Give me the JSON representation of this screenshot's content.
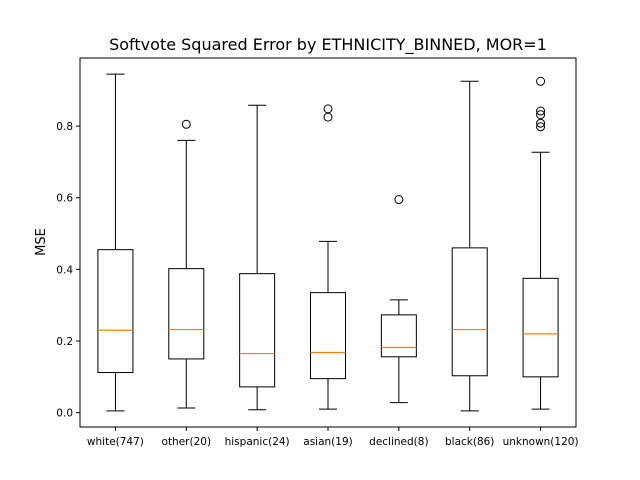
{
  "chart_data": {
    "type": "box",
    "title": "Softvote Squared Error by ETHNICITY_BINNED, MOR=1",
    "xlabel": "",
    "ylabel": "MSE",
    "ylim": [
      -0.04,
      0.99
    ],
    "yticks": [
      0.0,
      0.2,
      0.4,
      0.6,
      0.8
    ],
    "ytick_labels": [
      "0.0",
      "0.2",
      "0.4",
      "0.6",
      "0.8"
    ],
    "grid": false,
    "colors": {
      "box": "#000000",
      "median": "#ff7f0e",
      "flier": "#000000"
    },
    "categories": [
      "white(747)",
      "other(20)",
      "hispanic(24)",
      "asian(19)",
      "declined(8)",
      "black(86)",
      "unknown(120)"
    ],
    "boxes": [
      {
        "label": "white(747)",
        "whisker_low": 0.005,
        "q1": 0.112,
        "median": 0.23,
        "q3": 0.455,
        "whisker_high": 0.945,
        "fliers": []
      },
      {
        "label": "other(20)",
        "whisker_low": 0.013,
        "q1": 0.15,
        "median": 0.232,
        "q3": 0.402,
        "whisker_high": 0.76,
        "fliers": [
          0.805
        ]
      },
      {
        "label": "hispanic(24)",
        "whisker_low": 0.008,
        "q1": 0.072,
        "median": 0.165,
        "q3": 0.388,
        "whisker_high": 0.858,
        "fliers": []
      },
      {
        "label": "asian(19)",
        "whisker_low": 0.01,
        "q1": 0.095,
        "median": 0.168,
        "q3": 0.335,
        "whisker_high": 0.478,
        "fliers": [
          0.825,
          0.848
        ]
      },
      {
        "label": "declined(8)",
        "whisker_low": 0.028,
        "q1": 0.156,
        "median": 0.182,
        "q3": 0.273,
        "whisker_high": 0.315,
        "fliers": [
          0.595
        ]
      },
      {
        "label": "black(86)",
        "whisker_low": 0.005,
        "q1": 0.103,
        "median": 0.232,
        "q3": 0.46,
        "whisker_high": 0.925,
        "fliers": []
      },
      {
        "label": "unknown(120)",
        "whisker_low": 0.01,
        "q1": 0.1,
        "median": 0.22,
        "q3": 0.375,
        "whisker_high": 0.727,
        "fliers": [
          0.798,
          0.808,
          0.832,
          0.842,
          0.925
        ]
      }
    ]
  }
}
